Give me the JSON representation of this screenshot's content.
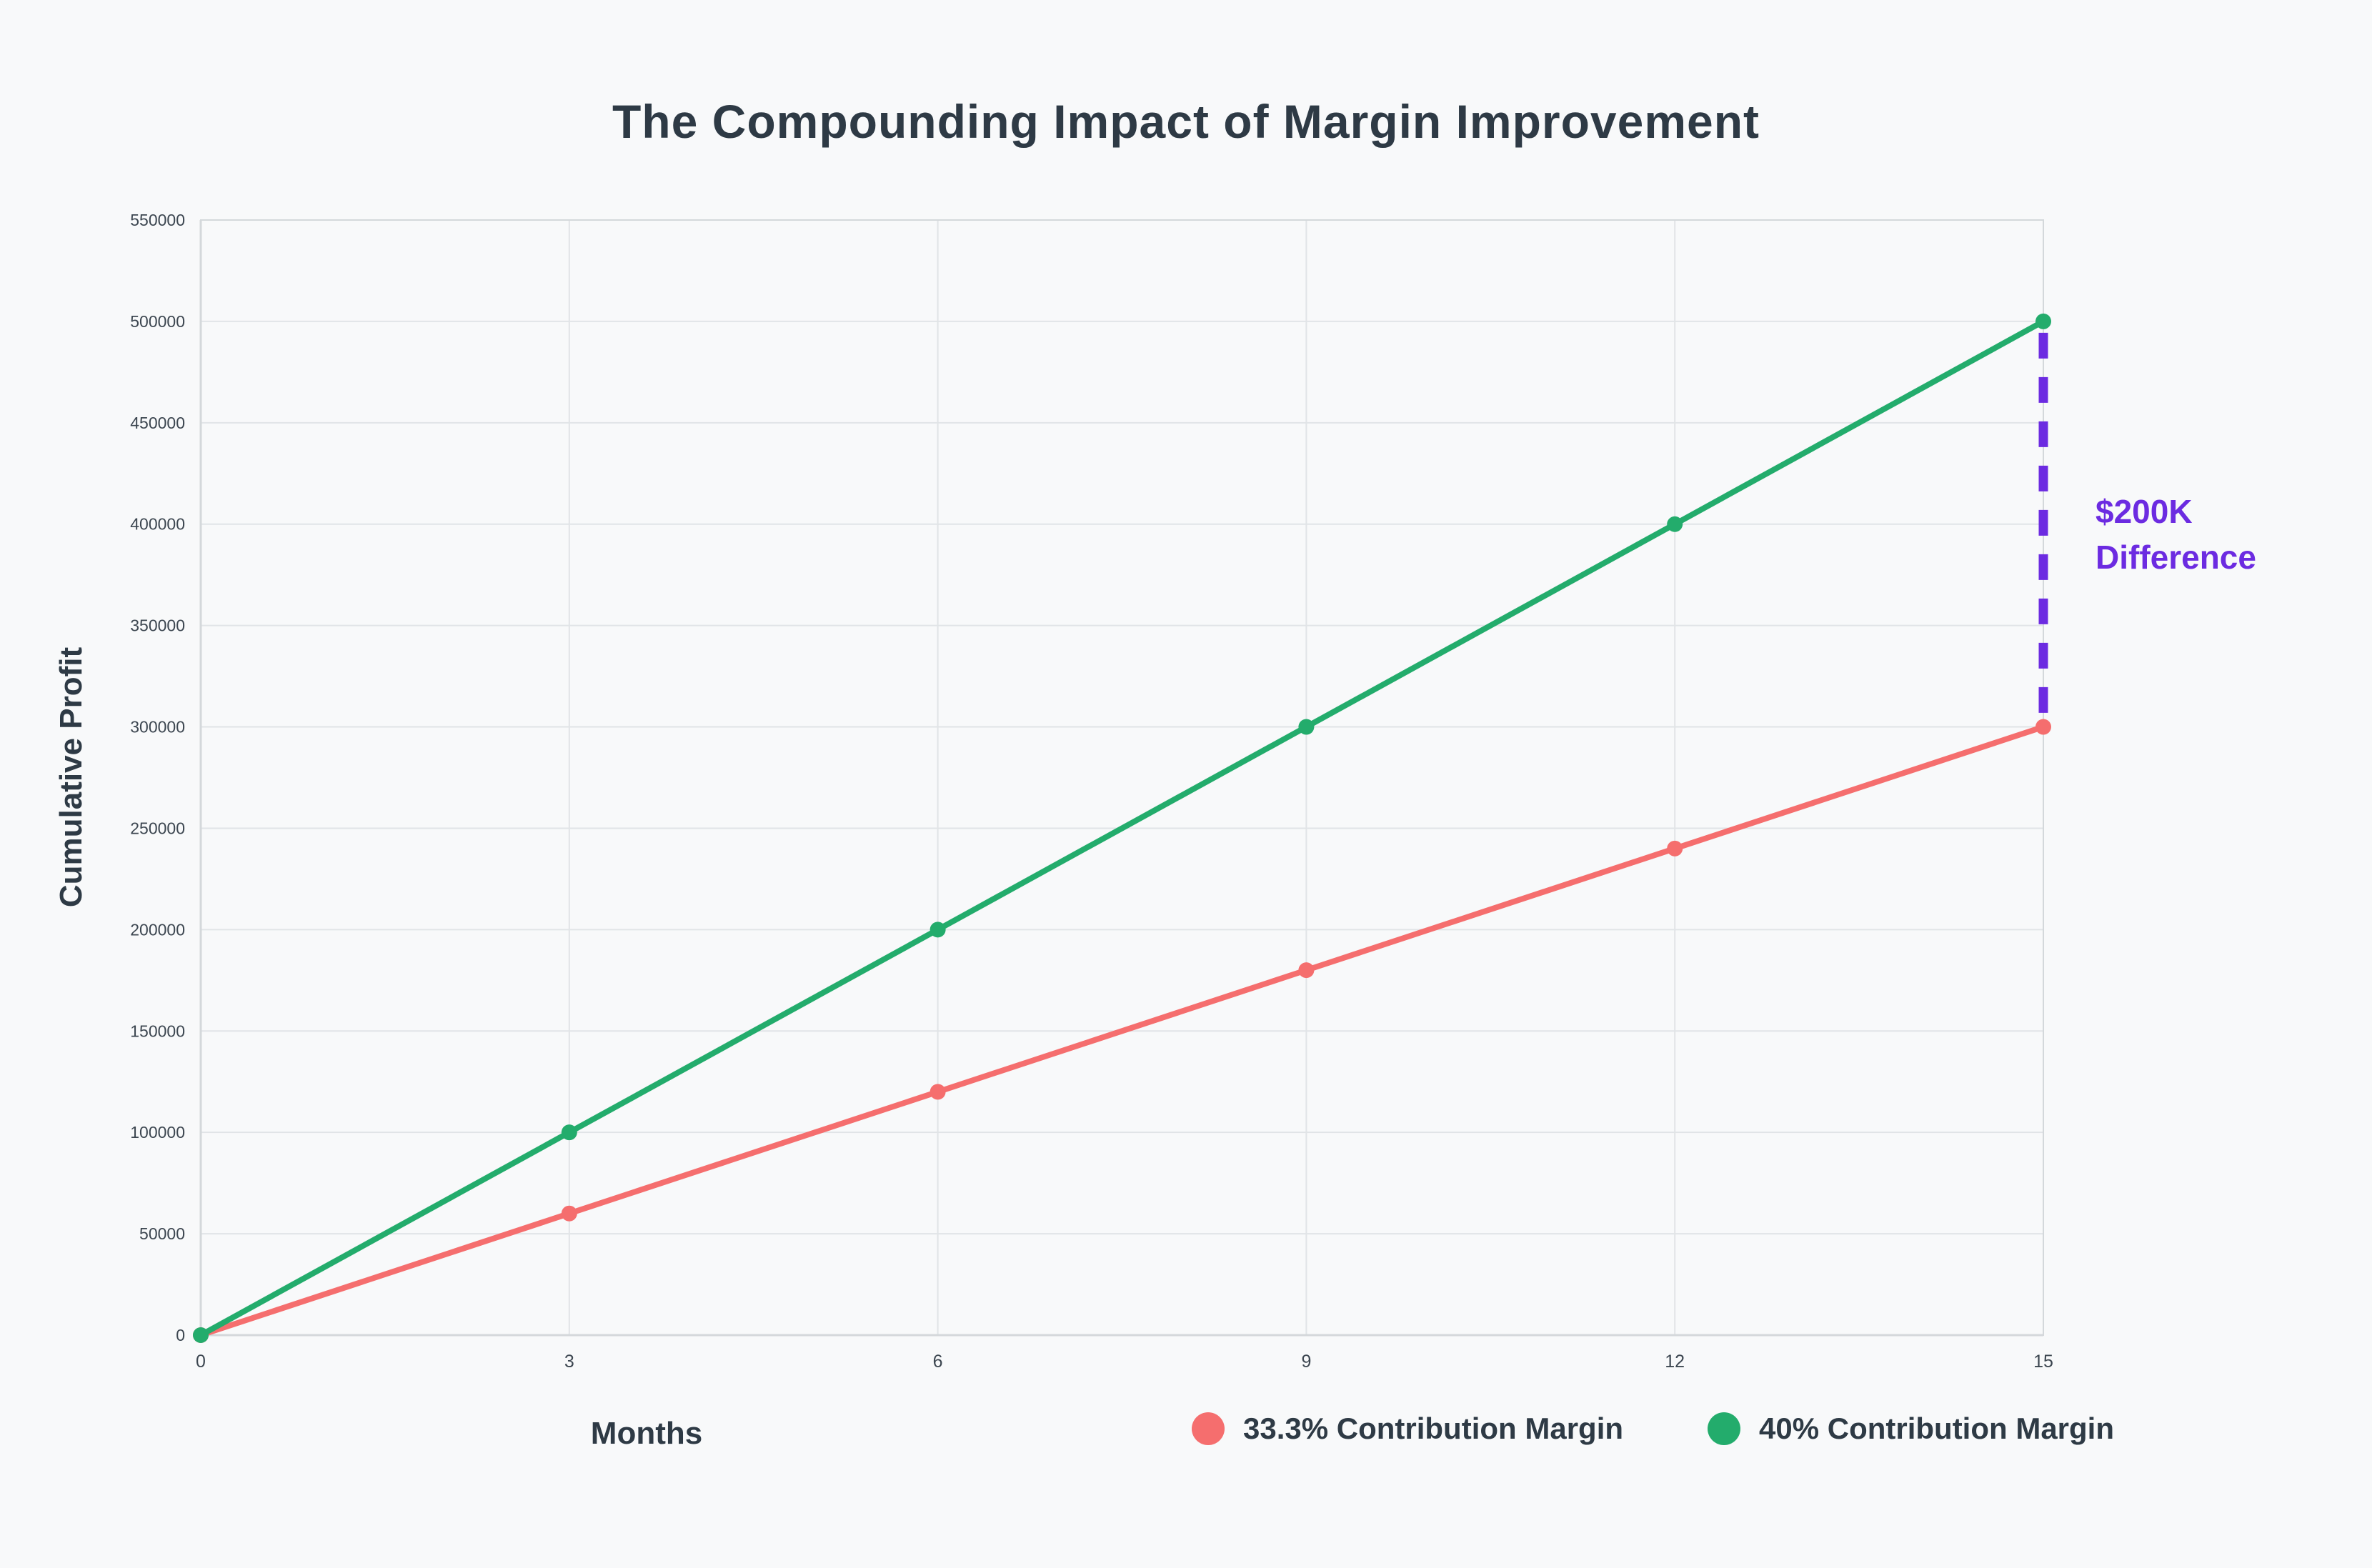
{
  "page": {
    "background_color": "#f8f9fa"
  },
  "chart_data": {
    "type": "line",
    "title": "The Compounding Impact of Margin Improvement",
    "xlabel": "Months",
    "ylabel": "Cumulative Profit",
    "x": [
      0,
      3,
      6,
      9,
      12,
      15
    ],
    "series": [
      {
        "name": "33.3% Contribution Margin",
        "color": "#f56e6e",
        "values": [
          0,
          60000,
          120000,
          180000,
          240000,
          300000
        ]
      },
      {
        "name": "40% Contribution Margin",
        "color": "#23ac6c",
        "values": [
          0,
          100000,
          200000,
          300000,
          400000,
          500000
        ]
      }
    ],
    "xlim": [
      0,
      15
    ],
    "ylim": [
      0,
      550000
    ],
    "xticks": [
      0,
      3,
      6,
      9,
      12,
      15
    ],
    "yticks": [
      0,
      50000,
      100000,
      150000,
      200000,
      250000,
      300000,
      350000,
      400000,
      450000,
      500000,
      550000
    ],
    "grid": true,
    "legend_position": "bottom",
    "annotation": {
      "text": "$200K Difference",
      "color": "#6c2be1",
      "x": 15,
      "from_value": 500000,
      "to_value": 300000,
      "line_style": "dashed"
    },
    "style": {
      "grid_color": "#e1e4e7",
      "axis_color": "#d4d8db",
      "tick_color": "#3c4650",
      "line_width": 8,
      "marker_radius": 11
    }
  }
}
